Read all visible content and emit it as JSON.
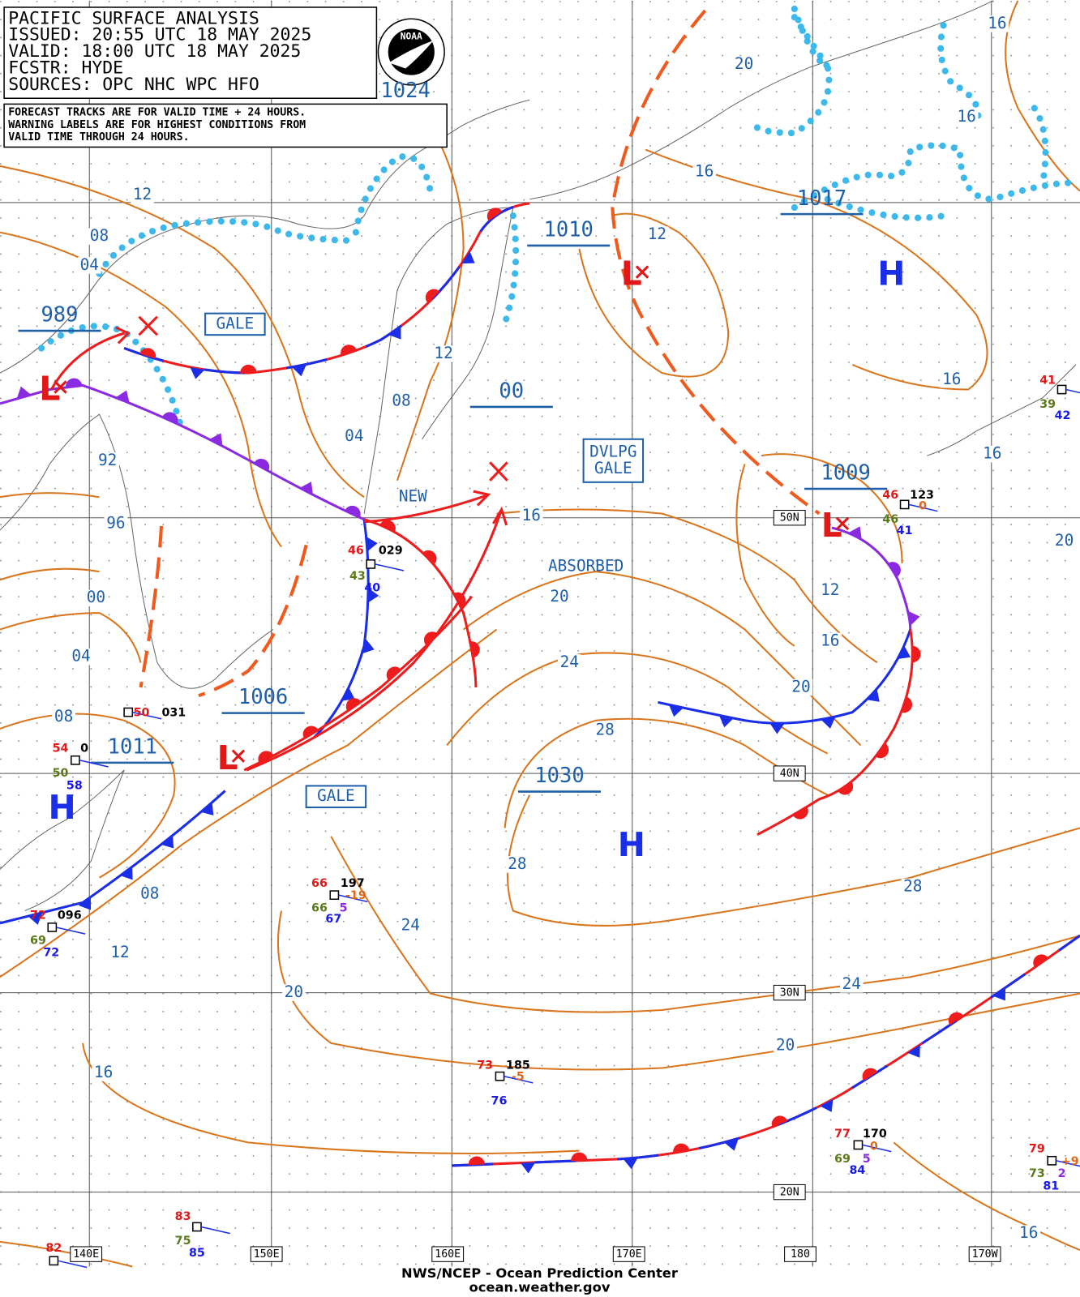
{
  "header": {
    "lines": [
      "PACIFIC SURFACE ANALYSIS",
      "ISSUED: 20:55 UTC 18 MAY 2025",
      "VALID: 18:00 UTC 18 MAY 2025",
      "FCSTR:  HYDE",
      "SOURCES: OPC NHC WPC HFO"
    ],
    "logo": "NOAA"
  },
  "note": {
    "lines": [
      "FORECAST TRACKS ARE FOR VALID TIME + 24 HOURS.",
      "WARNING LABELS ARE FOR HIGHEST CONDITIONS FROM",
      "VALID TIME THROUGH 24 HOURS."
    ]
  },
  "pressure_centers": [
    "1024",
    "1017",
    "1010",
    "989",
    "00",
    "1009",
    "1006",
    "1011",
    "1030"
  ],
  "symbols": [
    "H",
    "H",
    "H",
    "L",
    "L",
    "L",
    "L"
  ],
  "warnings": [
    [
      "GALE"
    ],
    [
      "DVLPG",
      "GALE"
    ],
    [
      "GALE"
    ]
  ],
  "annotations": [
    "NEW",
    "ABSORBED"
  ],
  "isobar_labels": [
    "12",
    "08",
    "04",
    "92",
    "96",
    "00",
    "04",
    "08",
    "20",
    "16",
    "16",
    "16",
    "12",
    "12",
    "08",
    "04",
    "16",
    "16",
    "16",
    "20",
    "12",
    "16",
    "20",
    "24",
    "20",
    "28",
    "28",
    "28",
    "08",
    "12",
    "24",
    "20",
    "24",
    "20",
    "16",
    "16"
  ],
  "graticule_labels": [
    "50N",
    "40N",
    "30N",
    "20N",
    "140E",
    "150E",
    "160E",
    "170E",
    "180",
    "170W"
  ],
  "stations": [
    [
      "46",
      "029",
      "43",
      "40"
    ],
    [
      "50",
      "031"
    ],
    [
      "54",
      "0",
      "50",
      "58"
    ],
    [
      "66",
      "197",
      "-19",
      "66",
      "5",
      "67"
    ],
    [
      "72",
      "096",
      "69",
      "72"
    ],
    [
      "73",
      "185",
      "-5",
      "76"
    ],
    [
      "77",
      "170",
      "0",
      "69",
      "5",
      "84"
    ],
    [
      "79",
      "+9",
      "73",
      "2",
      "81"
    ],
    [
      "83",
      "75",
      "85"
    ],
    [
      "82"
    ],
    [
      "46",
      "123",
      "0",
      "46",
      "41"
    ],
    [
      "41",
      "39",
      "42"
    ]
  ],
  "footer": [
    "NWS/NCEP - Ocean Prediction Center",
    "ocean.weather.gov"
  ]
}
